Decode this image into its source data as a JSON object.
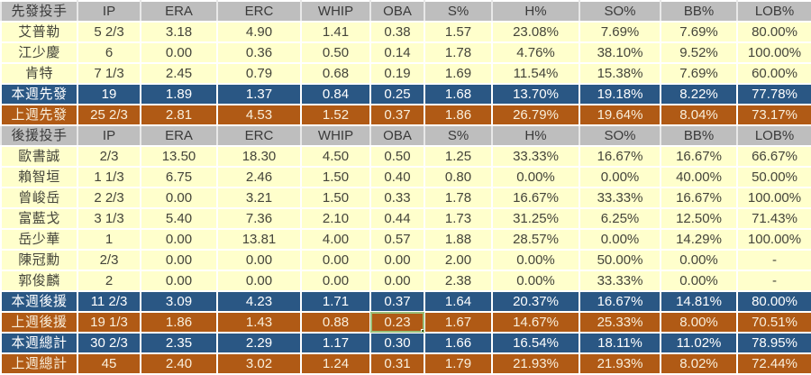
{
  "table": {
    "title": "pitching-stats",
    "column_headers_starters": [
      "先發投手",
      "IP",
      "ERA",
      "ERC",
      "WHIP",
      "OBA",
      "S%",
      "H%",
      "SO%",
      "BB%",
      "LOB%"
    ],
    "column_headers_relievers": [
      "後援投手",
      "IP",
      "ERA",
      "ERC",
      "WHIP",
      "OBA",
      "S%",
      "H%",
      "SO%",
      "BB%",
      "LOB%"
    ],
    "rows": [
      {
        "type": "header",
        "cells": [
          "先發投手",
          "IP",
          "ERA",
          "ERC",
          "WHIP",
          "OBA",
          "S%",
          "H%",
          "SO%",
          "BB%",
          "LOB%"
        ]
      },
      {
        "type": "player",
        "cells": [
          "艾普勒",
          "5 2/3",
          "3.18",
          "4.90",
          "1.41",
          "0.38",
          "1.57",
          "23.08%",
          "7.69%",
          "7.69%",
          "80.00%"
        ]
      },
      {
        "type": "player",
        "cells": [
          "江少慶",
          "6",
          "0.00",
          "0.36",
          "0.50",
          "0.14",
          "1.78",
          "4.76%",
          "38.10%",
          "9.52%",
          "100.00%"
        ]
      },
      {
        "type": "player",
        "cells": [
          "肯特",
          "7 1/3",
          "2.45",
          "0.79",
          "0.68",
          "0.19",
          "1.69",
          "11.54%",
          "15.38%",
          "7.69%",
          "60.00%"
        ]
      },
      {
        "type": "blue",
        "cells": [
          "本週先發",
          "19",
          "1.89",
          "1.37",
          "0.84",
          "0.25",
          "1.68",
          "13.70%",
          "19.18%",
          "8.22%",
          "77.78%"
        ]
      },
      {
        "type": "brown",
        "cells": [
          "上週先發",
          "25 2/3",
          "2.81",
          "4.53",
          "1.52",
          "0.37",
          "1.86",
          "26.79%",
          "19.64%",
          "8.04%",
          "73.17%"
        ]
      },
      {
        "type": "header",
        "cells": [
          "後援投手",
          "IP",
          "ERA",
          "ERC",
          "WHIP",
          "OBA",
          "S%",
          "H%",
          "SO%",
          "BB%",
          "LOB%"
        ]
      },
      {
        "type": "player",
        "cells": [
          "歐書誠",
          "2/3",
          "13.50",
          "18.30",
          "4.50",
          "0.50",
          "1.25",
          "33.33%",
          "16.67%",
          "16.67%",
          "66.67%"
        ]
      },
      {
        "type": "player",
        "cells": [
          "賴智垣",
          "1 1/3",
          "6.75",
          "2.46",
          "1.50",
          "0.40",
          "0.80",
          "0.00%",
          "0.00%",
          "40.00%",
          "50.00%"
        ]
      },
      {
        "type": "player",
        "cells": [
          "曾峻岳",
          "2 2/3",
          "0.00",
          "3.21",
          "1.50",
          "0.33",
          "1.78",
          "16.67%",
          "33.33%",
          "16.67%",
          "100.00%"
        ]
      },
      {
        "type": "player",
        "cells": [
          "富藍戈",
          "3 1/3",
          "5.40",
          "7.36",
          "2.10",
          "0.44",
          "1.73",
          "31.25%",
          "6.25%",
          "12.50%",
          "71.43%"
        ]
      },
      {
        "type": "player",
        "cells": [
          "岳少華",
          "1",
          "0.00",
          "13.81",
          "4.00",
          "0.57",
          "1.88",
          "28.57%",
          "0.00%",
          "14.29%",
          "100.00%"
        ]
      },
      {
        "type": "player",
        "cells": [
          "陳冠勳",
          "2/3",
          "0.00",
          "0.00",
          "0.00",
          "0.00",
          "2.00",
          "0.00%",
          "50.00%",
          "0.00%",
          "-"
        ]
      },
      {
        "type": "player",
        "cells": [
          "郭俊麟",
          "2",
          "0.00",
          "0.00",
          "0.00",
          "0.00",
          "2.38",
          "0.00%",
          "33.33%",
          "0.00%",
          "-"
        ]
      },
      {
        "type": "blue",
        "cells": [
          "本週後援",
          "11 2/3",
          "3.09",
          "4.23",
          "1.71",
          "0.37",
          "1.64",
          "20.37%",
          "16.67%",
          "14.81%",
          "80.00%"
        ]
      },
      {
        "type": "brown",
        "cells": [
          "上週後援",
          "19 1/3",
          "1.86",
          "1.43",
          "0.88",
          "0.23",
          "1.67",
          "14.67%",
          "25.33%",
          "8.00%",
          "70.51%"
        ]
      },
      {
        "type": "blue",
        "cells": [
          "本週總計",
          "30 2/3",
          "2.35",
          "2.29",
          "1.17",
          "0.30",
          "1.66",
          "16.54%",
          "18.11%",
          "11.02%",
          "78.95%"
        ]
      },
      {
        "type": "brown",
        "cells": [
          "上週總計",
          "45",
          "2.40",
          "3.02",
          "1.24",
          "0.31",
          "1.79",
          "21.93%",
          "21.93%",
          "8.02%",
          "72.44%"
        ]
      }
    ],
    "selected_cell": {
      "row": 15,
      "col": 5,
      "value": "0.23"
    }
  },
  "colors": {
    "header_bg": "#bebebe",
    "row_bg": "#ffffcc",
    "week_blue": "#2a5784",
    "week_brown": "#b05a15",
    "selected_border": "#9bc07a",
    "selected_handle": "#375623",
    "grid_line": "#ffffff"
  }
}
